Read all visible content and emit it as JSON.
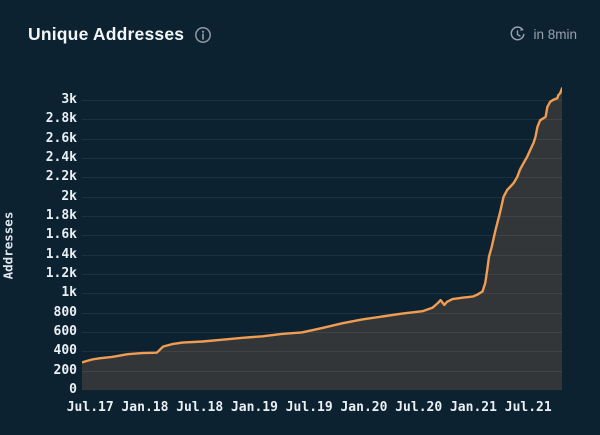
{
  "header": {
    "title": "Unique Addresses",
    "refresh_label": "in 8min"
  },
  "chart_data": {
    "type": "area",
    "title": "Unique Addresses",
    "ylabel": "Addresses",
    "xlabel": "",
    "grid": true,
    "legend_position": "none",
    "colors": {
      "line": "#f09d52",
      "fill": "#333639",
      "grid": "rgba(255,255,255,0.07)",
      "background": "#0d2231",
      "tick_text": "#e9eff4"
    },
    "ylim": [
      0,
      3155
    ],
    "y_tick_values": [
      0,
      200,
      400,
      600,
      800,
      1000,
      1200,
      1400,
      1600,
      1800,
      2000,
      2200,
      2400,
      2600,
      2800,
      3000
    ],
    "y_tick_labels": [
      "0",
      "200",
      "400",
      "600",
      "800",
      "1k",
      "1.2k",
      "1.4k",
      "1.6k",
      "1.8k",
      "2k",
      "2.2k",
      "2.4k",
      "2.6k",
      "2.8k",
      "3k"
    ],
    "x_tick_months": [
      0,
      6,
      12,
      18,
      24,
      30,
      36,
      42,
      48
    ],
    "x_tick_labels": [
      "Jul.17",
      "Jan.18",
      "Jul.18",
      "Jan.19",
      "Jul.19",
      "Jan.20",
      "Jul.20",
      "Jan.21",
      "Jul.21"
    ],
    "x_range_months": [
      -0.9,
      51.7
    ],
    "series": [
      {
        "name": "Unique Addresses",
        "points_month_value": [
          [
            -0.9,
            285
          ],
          [
            0.2,
            315
          ],
          [
            1,
            328
          ],
          [
            2.4,
            342
          ],
          [
            4.1,
            370
          ],
          [
            5.7,
            382
          ],
          [
            7.3,
            386
          ],
          [
            8,
            450
          ],
          [
            9,
            475
          ],
          [
            10.1,
            490
          ],
          [
            12.3,
            502
          ],
          [
            14.5,
            520
          ],
          [
            16.7,
            540
          ],
          [
            18.9,
            556
          ],
          [
            21,
            580
          ],
          [
            23.2,
            596
          ],
          [
            25.4,
            640
          ],
          [
            27.6,
            690
          ],
          [
            29.8,
            730
          ],
          [
            32,
            760
          ],
          [
            34.2,
            790
          ],
          [
            36.4,
            815
          ],
          [
            37.5,
            850
          ],
          [
            38.1,
            900
          ],
          [
            38.4,
            930
          ],
          [
            38.8,
            880
          ],
          [
            39.1,
            912
          ],
          [
            39.7,
            940
          ],
          [
            40.8,
            955
          ],
          [
            41.9,
            966
          ],
          [
            42.4,
            985
          ],
          [
            43,
            1020
          ],
          [
            43.3,
            1110
          ],
          [
            43.5,
            1240
          ],
          [
            43.7,
            1380
          ],
          [
            44,
            1480
          ],
          [
            44.4,
            1650
          ],
          [
            44.7,
            1760
          ],
          [
            44.9,
            1830
          ],
          [
            45.3,
            2000
          ],
          [
            45.7,
            2070
          ],
          [
            46,
            2100
          ],
          [
            46.4,
            2140
          ],
          [
            46.8,
            2205
          ],
          [
            47.1,
            2280
          ],
          [
            47.5,
            2350
          ],
          [
            47.9,
            2415
          ],
          [
            48.2,
            2480
          ],
          [
            48.6,
            2560
          ],
          [
            48.8,
            2620
          ],
          [
            49,
            2720
          ],
          [
            49.3,
            2790
          ],
          [
            49.9,
            2825
          ],
          [
            50.1,
            2930
          ],
          [
            50.4,
            2980
          ],
          [
            50.7,
            3000
          ],
          [
            51.2,
            3020
          ],
          [
            51.3,
            3050
          ],
          [
            51.5,
            3070
          ],
          [
            51.7,
            3120
          ]
        ]
      }
    ]
  }
}
